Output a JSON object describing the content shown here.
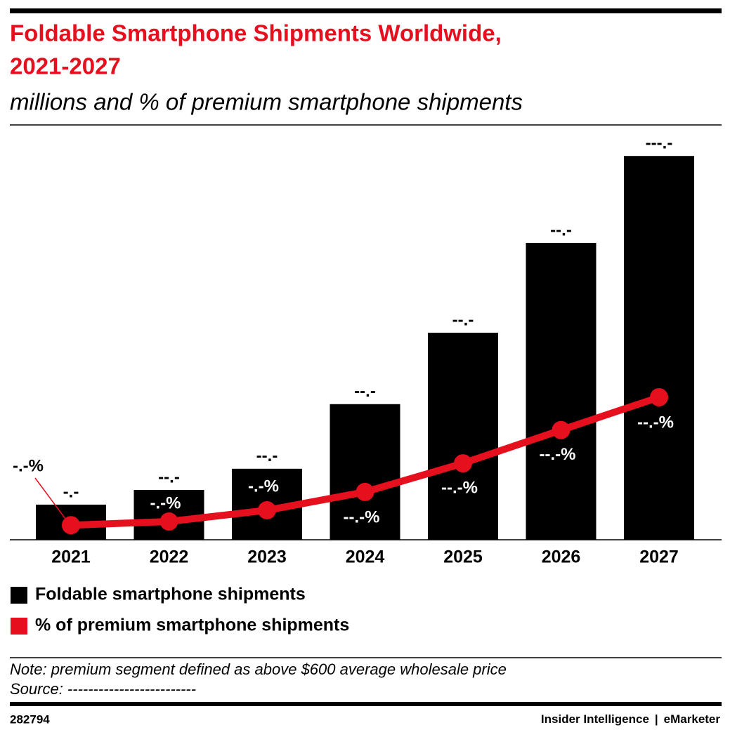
{
  "chart_data": {
    "type": "bar",
    "title": "Foldable Smartphone Shipments Worldwide,",
    "title_line2": "2021-2027",
    "subtitle": "millions and % of premium smartphone shipments",
    "categories": [
      "2021",
      "2022",
      "2023",
      "2024",
      "2025",
      "2026",
      "2027"
    ],
    "series": [
      {
        "name": "Foldable smartphone shipments",
        "color": "#000000",
        "type": "bar",
        "values": [
          9.3,
          13.2,
          18.8,
          35.9,
          54.8,
          78.6,
          101.6
        ],
        "value_labels": [
          "-.-",
          "--.-",
          "--.-",
          "--.-",
          "--.-",
          "--.-",
          "---.-"
        ]
      },
      {
        "name": "% of premium smartphone shipments",
        "color": "#e60f1e",
        "type": "line",
        "axis": "y2",
        "values": [
          3.5,
          4.4,
          7.1,
          11.5,
          18.4,
          26.4,
          34.3
        ],
        "value_labels": [
          "-.-%",
          "-.-%",
          "-.-%",
          "--.-%",
          "--.-%",
          "--.-%",
          "--.-%"
        ]
      }
    ],
    "ylim": [
      0,
      110
    ],
    "y2lim": [
      0,
      100
    ],
    "legend": "bottom-left",
    "note": "Note: premium segment defined as above $600 average wholesale price",
    "source": "Source: -------------------------",
    "chart_id": "282794",
    "brand": [
      "Insider Intelligence",
      "|",
      "eMarketer"
    ]
  }
}
